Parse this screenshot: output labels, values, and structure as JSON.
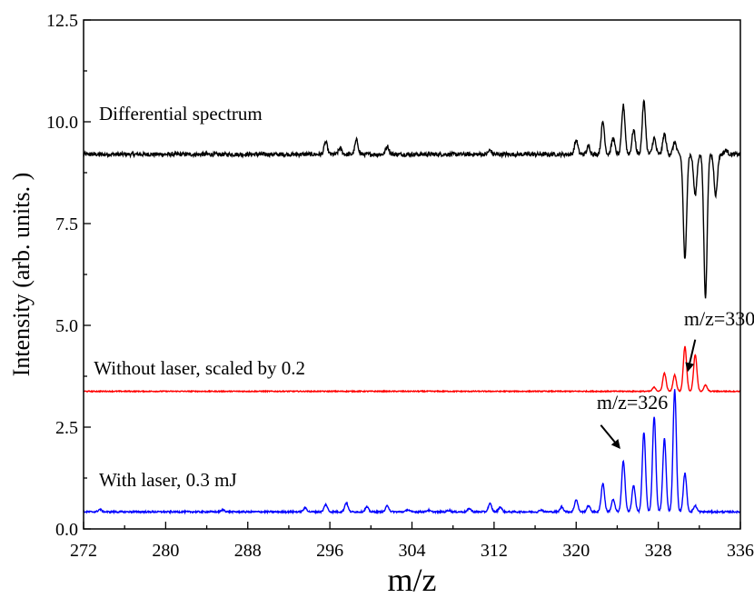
{
  "chart_data": {
    "type": "line",
    "title": "",
    "xlabel": "m/z",
    "ylabel": "Intensity (arb. units. )",
    "xlim": [
      272,
      336
    ],
    "ylim": [
      0,
      12.5
    ],
    "x_ticks": [
      272,
      280,
      288,
      296,
      304,
      312,
      320,
      328,
      336
    ],
    "x_tick_labels": [
      "272",
      "280",
      "288",
      "296",
      "304",
      "312",
      "320",
      "328",
      "336"
    ],
    "y_ticks": [
      0,
      2.5,
      5,
      7.5,
      10,
      12.5
    ],
    "y_tick_labels": [
      "0.0",
      "2.5",
      "5.0",
      "7.5",
      "10.0",
      "12.5"
    ],
    "grid": false,
    "series": [
      {
        "name": "Differential spectrum",
        "color": "#000000",
        "baseline": 9.2,
        "noise": 0.05,
        "peaks": [
          [
            295.6,
            0.3
          ],
          [
            297.0,
            0.15
          ],
          [
            298.6,
            0.35
          ],
          [
            301.6,
            0.2
          ],
          [
            311.6,
            0.1
          ],
          [
            320.0,
            0.35
          ],
          [
            321.2,
            0.2
          ],
          [
            322.6,
            0.8
          ],
          [
            323.6,
            0.4
          ],
          [
            324.6,
            1.2
          ],
          [
            325.6,
            0.6
          ],
          [
            326.6,
            1.3
          ],
          [
            327.6,
            0.4
          ],
          [
            328.6,
            0.5
          ],
          [
            329.6,
            0.3
          ],
          [
            330.6,
            -2.6
          ],
          [
            331.6,
            -1.0
          ],
          [
            332.6,
            -3.5
          ],
          [
            333.6,
            -1.0
          ],
          [
            334.6,
            0.1
          ]
        ]
      },
      {
        "name": "Without laser, scaled by 0.2",
        "color": "#ff0000",
        "baseline": 3.38,
        "noise": 0.012,
        "peaks": [
          [
            327.6,
            0.1
          ],
          [
            328.6,
            0.45
          ],
          [
            329.6,
            0.4
          ],
          [
            330.6,
            1.1
          ],
          [
            331.6,
            0.9
          ],
          [
            332.6,
            0.15
          ]
        ]
      },
      {
        "name": "With laser, 0.3 mJ",
        "color": "#0000ff",
        "baseline": 0.42,
        "noise": 0.02,
        "peaks": [
          [
            273.6,
            0.06
          ],
          [
            285.6,
            0.05
          ],
          [
            293.6,
            0.1
          ],
          [
            295.6,
            0.18
          ],
          [
            297.6,
            0.22
          ],
          [
            299.6,
            0.12
          ],
          [
            301.6,
            0.15
          ],
          [
            303.6,
            0.05
          ],
          [
            305.6,
            0.04
          ],
          [
            307.6,
            0.04
          ],
          [
            309.6,
            0.08
          ],
          [
            311.6,
            0.2
          ],
          [
            312.6,
            0.12
          ],
          [
            316.6,
            0.05
          ],
          [
            318.6,
            0.12
          ],
          [
            320.0,
            0.3
          ],
          [
            321.2,
            0.15
          ],
          [
            322.6,
            0.7
          ],
          [
            323.6,
            0.3
          ],
          [
            324.6,
            1.25
          ],
          [
            325.6,
            0.65
          ],
          [
            326.6,
            1.95
          ],
          [
            327.6,
            2.35
          ],
          [
            328.6,
            1.8
          ],
          [
            329.6,
            3.0
          ],
          [
            330.6,
            0.95
          ],
          [
            331.6,
            0.15
          ]
        ]
      }
    ],
    "series_labels": [
      {
        "text": "Differential spectrum",
        "x": 273.5,
        "y": 10.05
      },
      {
        "text": "Without laser, scaled by 0.2",
        "x": 273.0,
        "y": 3.8
      },
      {
        "text": "With laser, 0.3 mJ",
        "x": 273.5,
        "y": 1.05
      }
    ],
    "annotations": [
      {
        "text": "m/z=330",
        "x": 330.5,
        "y": 5.0,
        "arrow_from": [
          331.6,
          4.65
        ],
        "arrow_to": [
          330.9,
          3.9
        ]
      },
      {
        "text": "m/z=326",
        "x": 322.0,
        "y": 2.95,
        "arrow_from": [
          322.4,
          2.55
        ],
        "arrow_to": [
          324.2,
          2.0
        ]
      }
    ]
  }
}
